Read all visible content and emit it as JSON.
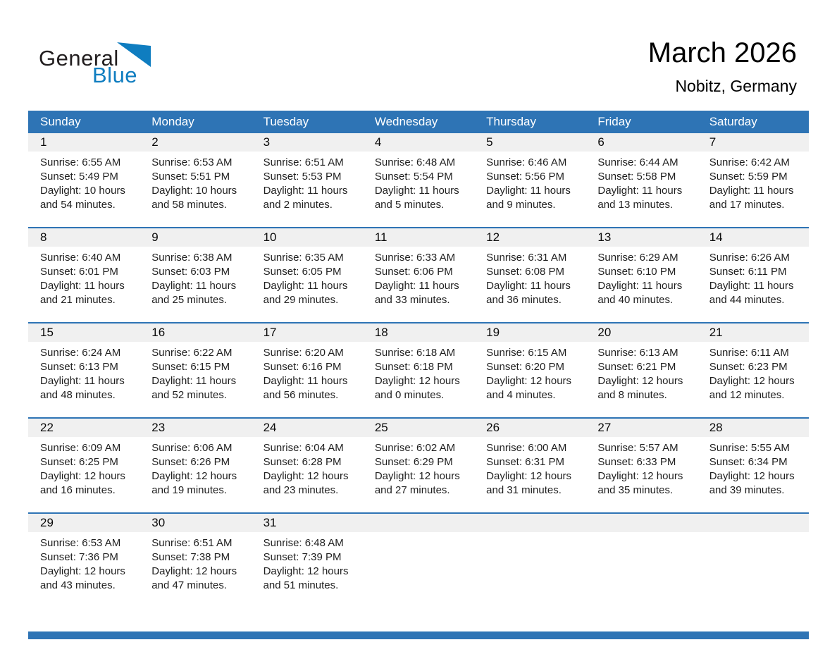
{
  "logo": {
    "general": "General",
    "blue": "Blue"
  },
  "header": {
    "title": "March 2026",
    "subtitle": "Nobitz, Germany"
  },
  "colors": {
    "header_blue": "#2e74b5",
    "logo_blue": "#0f7dc0",
    "band_gray": "#f0f0f0",
    "text_dark": "#1f1f1f"
  },
  "calendar": {
    "weekday_headers": [
      "Sunday",
      "Monday",
      "Tuesday",
      "Wednesday",
      "Thursday",
      "Friday",
      "Saturday"
    ],
    "weeks": [
      {
        "days": [
          {
            "date": "1",
            "lines": [
              "Sunrise: 6:55 AM",
              "Sunset: 5:49 PM",
              "Daylight: 10 hours",
              "and 54 minutes."
            ]
          },
          {
            "date": "2",
            "lines": [
              "Sunrise: 6:53 AM",
              "Sunset: 5:51 PM",
              "Daylight: 10 hours",
              "and 58 minutes."
            ]
          },
          {
            "date": "3",
            "lines": [
              "Sunrise: 6:51 AM",
              "Sunset: 5:53 PM",
              "Daylight: 11 hours",
              "and 2 minutes."
            ]
          },
          {
            "date": "4",
            "lines": [
              "Sunrise: 6:48 AM",
              "Sunset: 5:54 PM",
              "Daylight: 11 hours",
              "and 5 minutes."
            ]
          },
          {
            "date": "5",
            "lines": [
              "Sunrise: 6:46 AM",
              "Sunset: 5:56 PM",
              "Daylight: 11 hours",
              "and 9 minutes."
            ]
          },
          {
            "date": "6",
            "lines": [
              "Sunrise: 6:44 AM",
              "Sunset: 5:58 PM",
              "Daylight: 11 hours",
              "and 13 minutes."
            ]
          },
          {
            "date": "7",
            "lines": [
              "Sunrise: 6:42 AM",
              "Sunset: 5:59 PM",
              "Daylight: 11 hours",
              "and 17 minutes."
            ]
          }
        ]
      },
      {
        "days": [
          {
            "date": "8",
            "lines": [
              "Sunrise: 6:40 AM",
              "Sunset: 6:01 PM",
              "Daylight: 11 hours",
              "and 21 minutes."
            ]
          },
          {
            "date": "9",
            "lines": [
              "Sunrise: 6:38 AM",
              "Sunset: 6:03 PM",
              "Daylight: 11 hours",
              "and 25 minutes."
            ]
          },
          {
            "date": "10",
            "lines": [
              "Sunrise: 6:35 AM",
              "Sunset: 6:05 PM",
              "Daylight: 11 hours",
              "and 29 minutes."
            ]
          },
          {
            "date": "11",
            "lines": [
              "Sunrise: 6:33 AM",
              "Sunset: 6:06 PM",
              "Daylight: 11 hours",
              "and 33 minutes."
            ]
          },
          {
            "date": "12",
            "lines": [
              "Sunrise: 6:31 AM",
              "Sunset: 6:08 PM",
              "Daylight: 11 hours",
              "and 36 minutes."
            ]
          },
          {
            "date": "13",
            "lines": [
              "Sunrise: 6:29 AM",
              "Sunset: 6:10 PM",
              "Daylight: 11 hours",
              "and 40 minutes."
            ]
          },
          {
            "date": "14",
            "lines": [
              "Sunrise: 6:26 AM",
              "Sunset: 6:11 PM",
              "Daylight: 11 hours",
              "and 44 minutes."
            ]
          }
        ]
      },
      {
        "days": [
          {
            "date": "15",
            "lines": [
              "Sunrise: 6:24 AM",
              "Sunset: 6:13 PM",
              "Daylight: 11 hours",
              "and 48 minutes."
            ]
          },
          {
            "date": "16",
            "lines": [
              "Sunrise: 6:22 AM",
              "Sunset: 6:15 PM",
              "Daylight: 11 hours",
              "and 52 minutes."
            ]
          },
          {
            "date": "17",
            "lines": [
              "Sunrise: 6:20 AM",
              "Sunset: 6:16 PM",
              "Daylight: 11 hours",
              "and 56 minutes."
            ]
          },
          {
            "date": "18",
            "lines": [
              "Sunrise: 6:18 AM",
              "Sunset: 6:18 PM",
              "Daylight: 12 hours",
              "and 0 minutes."
            ]
          },
          {
            "date": "19",
            "lines": [
              "Sunrise: 6:15 AM",
              "Sunset: 6:20 PM",
              "Daylight: 12 hours",
              "and 4 minutes."
            ]
          },
          {
            "date": "20",
            "lines": [
              "Sunrise: 6:13 AM",
              "Sunset: 6:21 PM",
              "Daylight: 12 hours",
              "and 8 minutes."
            ]
          },
          {
            "date": "21",
            "lines": [
              "Sunrise: 6:11 AM",
              "Sunset: 6:23 PM",
              "Daylight: 12 hours",
              "and 12 minutes."
            ]
          }
        ]
      },
      {
        "days": [
          {
            "date": "22",
            "lines": [
              "Sunrise: 6:09 AM",
              "Sunset: 6:25 PM",
              "Daylight: 12 hours",
              "and 16 minutes."
            ]
          },
          {
            "date": "23",
            "lines": [
              "Sunrise: 6:06 AM",
              "Sunset: 6:26 PM",
              "Daylight: 12 hours",
              "and 19 minutes."
            ]
          },
          {
            "date": "24",
            "lines": [
              "Sunrise: 6:04 AM",
              "Sunset: 6:28 PM",
              "Daylight: 12 hours",
              "and 23 minutes."
            ]
          },
          {
            "date": "25",
            "lines": [
              "Sunrise: 6:02 AM",
              "Sunset: 6:29 PM",
              "Daylight: 12 hours",
              "and 27 minutes."
            ]
          },
          {
            "date": "26",
            "lines": [
              "Sunrise: 6:00 AM",
              "Sunset: 6:31 PM",
              "Daylight: 12 hours",
              "and 31 minutes."
            ]
          },
          {
            "date": "27",
            "lines": [
              "Sunrise: 5:57 AM",
              "Sunset: 6:33 PM",
              "Daylight: 12 hours",
              "and 35 minutes."
            ]
          },
          {
            "date": "28",
            "lines": [
              "Sunrise: 5:55 AM",
              "Sunset: 6:34 PM",
              "Daylight: 12 hours",
              "and 39 minutes."
            ]
          }
        ]
      },
      {
        "days": [
          {
            "date": "29",
            "lines": [
              "Sunrise: 6:53 AM",
              "Sunset: 7:36 PM",
              "Daylight: 12 hours",
              "and 43 minutes."
            ]
          },
          {
            "date": "30",
            "lines": [
              "Sunrise: 6:51 AM",
              "Sunset: 7:38 PM",
              "Daylight: 12 hours",
              "and 47 minutes."
            ]
          },
          {
            "date": "31",
            "lines": [
              "Sunrise: 6:48 AM",
              "Sunset: 7:39 PM",
              "Daylight: 12 hours",
              "and 51 minutes."
            ]
          },
          null,
          null,
          null,
          null
        ]
      }
    ]
  }
}
